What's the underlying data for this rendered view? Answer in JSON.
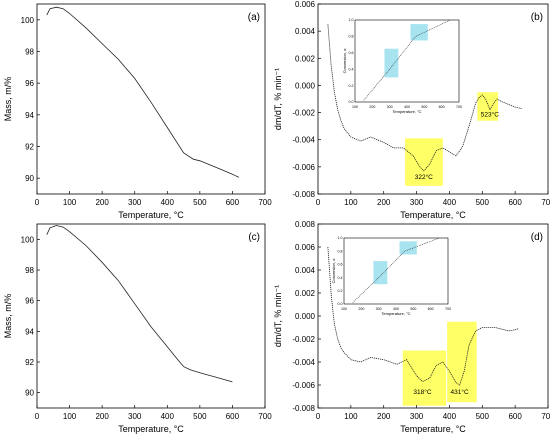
{
  "chart_data": [
    {
      "panel": "(a)",
      "type": "line",
      "xlabel": "Temperature, °C",
      "ylabel": "Mass, m/%",
      "xlim": [
        0,
        700
      ],
      "ylim": [
        89,
        101
      ],
      "xticks": [
        "0",
        "100",
        "200",
        "300",
        "400",
        "500",
        "600",
        "700"
      ],
      "yticks": [
        "90",
        "92",
        "94",
        "96",
        "98",
        "100"
      ],
      "series": [
        {
          "x": [
            30,
            40,
            60,
            80,
            100,
            150,
            200,
            250,
            300,
            350,
            400,
            450,
            480,
            500,
            530,
            560,
            600,
            620
          ],
          "y": [
            100.3,
            100.7,
            100.8,
            100.7,
            100.4,
            99.5,
            98.5,
            97.5,
            96.3,
            94.8,
            93.2,
            91.6,
            91.2,
            91.1,
            90.85,
            90.6,
            90.25,
            90.05
          ]
        }
      ]
    },
    {
      "panel": "(b)",
      "type": "line",
      "xlabel": "Temperature, °C",
      "ylabel": "dm/dT, % min⁻¹",
      "xlim": [
        0,
        700
      ],
      "ylim": [
        -0.008,
        0.006
      ],
      "xticks": [
        "0",
        "100",
        "200",
        "300",
        "400",
        "500",
        "600",
        "700"
      ],
      "yticks": [
        "-0.008",
        "-0.006",
        "-0.004",
        "-0.002",
        "0.000",
        "0.002",
        "0.004",
        "0.006"
      ],
      "series": [
        {
          "x": [
            30,
            35,
            40,
            45,
            50,
            60,
            70,
            80,
            100,
            130,
            160,
            200,
            230,
            260,
            290,
            310,
            322,
            340,
            360,
            380,
            400,
            420,
            440,
            460,
            480,
            490,
            500,
            510,
            520,
            523,
            535,
            545,
            560,
            580,
            600,
            620
          ],
          "y": [
            0.0045,
            0.003,
            0.0015,
            0.0005,
            -0.0005,
            -0.0018,
            -0.0026,
            -0.0032,
            -0.0038,
            -0.0041,
            -0.0038,
            -0.0042,
            -0.0046,
            -0.0046,
            -0.0052,
            -0.006,
            -0.0063,
            -0.0058,
            -0.0048,
            -0.0046,
            -0.0049,
            -0.0052,
            -0.0045,
            -0.003,
            -0.0013,
            -0.0009,
            -0.0007,
            -0.001,
            -0.0016,
            -0.0018,
            -0.0013,
            -0.001,
            -0.0012,
            -0.0014,
            -0.0016,
            -0.0017
          ]
        }
      ],
      "annotations": [
        {
          "text": "322°C"
        },
        {
          "text": "523°C"
        }
      ],
      "highlight_color": "#ffff66",
      "inset": {
        "xlabel": "Temperature, °C",
        "ylabel": "Conversion, α",
        "xticks": [
          "100",
          "200",
          "300",
          "400",
          "500",
          "600",
          "700"
        ],
        "yticks": [
          "0.0",
          "0.2",
          "0.4",
          "0.6",
          "0.8",
          "1.0"
        ],
        "highlight_color": "#a8e4f0"
      }
    },
    {
      "panel": "(c)",
      "type": "line",
      "xlabel": "Temperature, °C",
      "ylabel": "Mass, m/%",
      "xlim": [
        0,
        700
      ],
      "ylim": [
        89,
        101
      ],
      "xticks": [
        "0",
        "100",
        "200",
        "300",
        "400",
        "500",
        "600",
        "700"
      ],
      "yticks": [
        "90",
        "92",
        "94",
        "96",
        "98",
        "100"
      ],
      "series": [
        {
          "x": [
            30,
            40,
            60,
            80,
            100,
            150,
            200,
            250,
            300,
            350,
            400,
            430,
            450,
            470,
            500,
            550,
            600
          ],
          "y": [
            100.3,
            100.75,
            100.9,
            100.8,
            100.5,
            99.6,
            98.5,
            97.3,
            95.8,
            94.3,
            93.0,
            92.2,
            91.7,
            91.5,
            91.3,
            91.0,
            90.7
          ]
        }
      ]
    },
    {
      "panel": "(d)",
      "type": "line",
      "xlabel": "Temperature, °C",
      "ylabel": "dm/dT, % min⁻¹",
      "xlim": [
        0,
        700
      ],
      "ylim": [
        -0.008,
        0.008
      ],
      "xticks": [
        "0",
        "100",
        "200",
        "300",
        "400",
        "500",
        "600",
        "700"
      ],
      "yticks": [
        "-0.008",
        "-0.006",
        "-0.004",
        "-0.002",
        "0.000",
        "0.002",
        "0.004",
        "0.006",
        "0.008"
      ],
      "series": [
        {
          "x": [
            30,
            35,
            40,
            45,
            50,
            60,
            70,
            80,
            100,
            130,
            160,
            200,
            240,
            270,
            300,
            318,
            340,
            360,
            380,
            400,
            420,
            431,
            445,
            460,
            480,
            500,
            540,
            580,
            600,
            610
          ],
          "y": [
            0.006,
            0.004,
            0.002,
            0.0005,
            -0.0007,
            -0.002,
            -0.0028,
            -0.0032,
            -0.0038,
            -0.004,
            -0.0036,
            -0.0038,
            -0.0042,
            -0.0038,
            -0.0052,
            -0.0057,
            -0.0054,
            -0.0043,
            -0.004,
            -0.0048,
            -0.0058,
            -0.006,
            -0.0048,
            -0.0025,
            -0.0013,
            -0.001,
            -0.001,
            -0.0013,
            -0.0012,
            -0.0011
          ]
        }
      ],
      "annotations": [
        {
          "text": "318°C"
        },
        {
          "text": "431°C"
        }
      ],
      "highlight_color": "#ffff66",
      "inset": {
        "xlabel": "Temperature, °C",
        "ylabel": "Conversion, α",
        "xticks": [
          "100",
          "200",
          "300",
          "400",
          "500",
          "600",
          "700"
        ],
        "yticks": [
          "0.0",
          "0.2",
          "0.4",
          "0.6",
          "0.8",
          "1.0"
        ],
        "highlight_color": "#a8e4f0"
      }
    }
  ]
}
